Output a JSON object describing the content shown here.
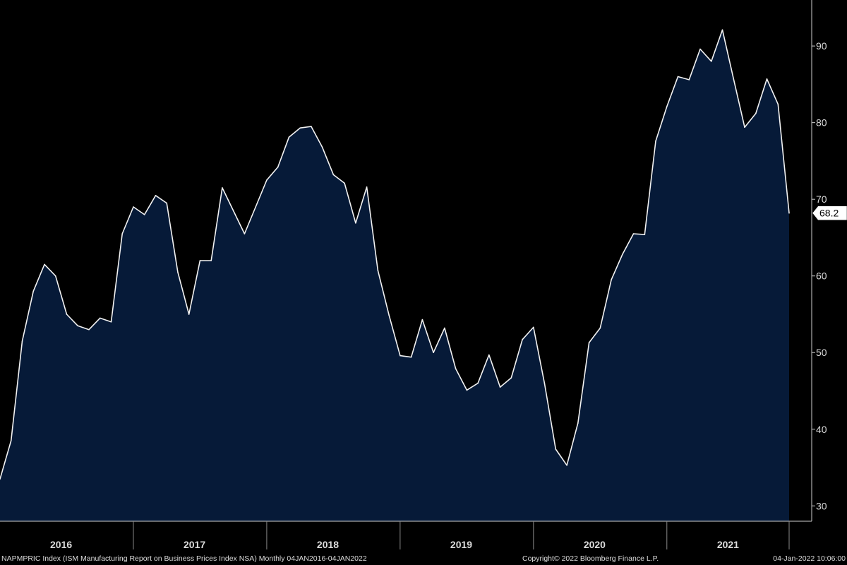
{
  "chart_data": {
    "type": "area",
    "title": "",
    "xlabel": "",
    "ylabel": "",
    "ylim": [
      28,
      96
    ],
    "yticks": [
      30,
      40,
      50,
      60,
      70,
      80,
      90
    ],
    "year_labels": [
      "2016",
      "2017",
      "2018",
      "2019",
      "2020",
      "2021"
    ],
    "last_value_label": "68.2",
    "grid": false,
    "series": [
      {
        "x": [
          "2016-01",
          "2016-02",
          "2016-03",
          "2016-04",
          "2016-05",
          "2016-06",
          "2016-07",
          "2016-08",
          "2016-09",
          "2016-10",
          "2016-11",
          "2016-12",
          "2017-01",
          "2017-02",
          "2017-03",
          "2017-04",
          "2017-05",
          "2017-06",
          "2017-07",
          "2017-08",
          "2017-09",
          "2017-10",
          "2017-11",
          "2017-12",
          "2018-01",
          "2018-02",
          "2018-03",
          "2018-04",
          "2018-05",
          "2018-06",
          "2018-07",
          "2018-08",
          "2018-09",
          "2018-10",
          "2018-11",
          "2018-12",
          "2019-01",
          "2019-02",
          "2019-03",
          "2019-04",
          "2019-05",
          "2019-06",
          "2019-07",
          "2019-08",
          "2019-09",
          "2019-10",
          "2019-11",
          "2019-12",
          "2020-01",
          "2020-02",
          "2020-03",
          "2020-04",
          "2020-05",
          "2020-06",
          "2020-07",
          "2020-08",
          "2020-09",
          "2020-10",
          "2020-11",
          "2020-12",
          "2021-01",
          "2021-02",
          "2021-03",
          "2021-04",
          "2021-05",
          "2021-06",
          "2021-07",
          "2021-08",
          "2021-09",
          "2021-10",
          "2021-11",
          "2021-12"
        ],
        "values": [
          33.5,
          38.5,
          51.5,
          58.0,
          61.5,
          60.0,
          55.0,
          53.5,
          53.0,
          54.5,
          54.0,
          65.5,
          69.0,
          68.0,
          70.5,
          69.5,
          60.5,
          55.0,
          62.0,
          62.0,
          71.5,
          68.5,
          65.5,
          69.0,
          72.5,
          74.2,
          78.1,
          79.3,
          79.5,
          76.8,
          73.2,
          72.1,
          66.9,
          71.6,
          60.7,
          54.9,
          49.6,
          49.4,
          54.3,
          50.0,
          53.2,
          47.9,
          45.1,
          46.0,
          49.7,
          45.5,
          46.7,
          51.7,
          53.3,
          45.9,
          37.4,
          35.3,
          40.8,
          51.3,
          53.2,
          59.5,
          62.8,
          65.5,
          65.4,
          77.6,
          82.1,
          86.0,
          85.6,
          89.6,
          88.0,
          92.1,
          85.7,
          79.4,
          81.2,
          85.7,
          82.4,
          68.2
        ]
      }
    ]
  },
  "footer": {
    "left": "NAPMPRIC Index (ISM Manufacturing Report on Business Prices Index NSA)  Monthly 04JAN2016-04JAN2022",
    "middle": "Copyright© 2022 Bloomberg Finance L.P.",
    "right": "04-Jan-2022 10:06:00"
  },
  "colors": {
    "background": "#000000",
    "area_fill": "#061a38",
    "line": "#f2f2f2",
    "text": "#dcdcdc"
  }
}
